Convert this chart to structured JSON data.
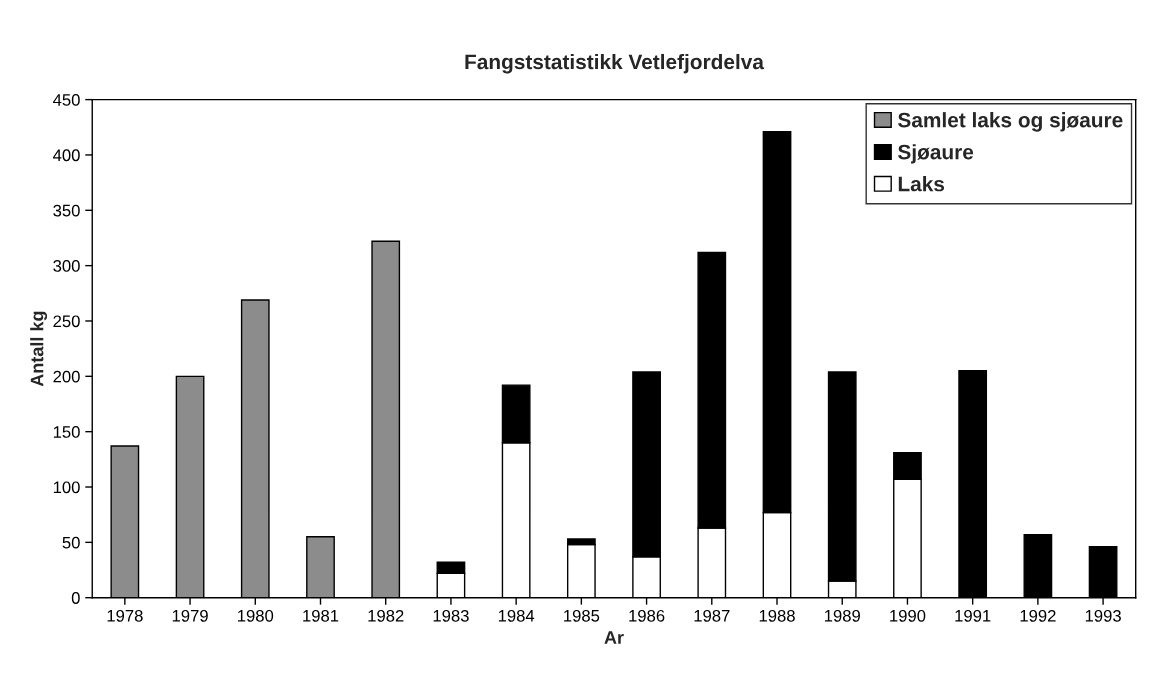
{
  "chart_data": {
    "type": "bar",
    "title": "Fangststatistikk Vetlefjordelva",
    "xlabel": "Ar",
    "ylabel": "Antall kg",
    "categories": [
      "1978",
      "1979",
      "1980",
      "1981",
      "1982",
      "1983",
      "1984",
      "1985",
      "1986",
      "1987",
      "1988",
      "1989",
      "1990",
      "1991",
      "1992",
      "1993"
    ],
    "stacked": true,
    "series": [
      {
        "name": "Laks",
        "color": "#ffffff",
        "values": [
          null,
          null,
          null,
          null,
          null,
          22,
          140,
          48,
          37,
          63,
          77,
          15,
          107,
          null,
          null,
          null
        ]
      },
      {
        "name": "Sjøaure",
        "color": "#000000",
        "values": [
          null,
          null,
          null,
          null,
          null,
          10,
          52,
          5,
          167,
          249,
          344,
          189,
          24,
          205,
          57,
          46
        ]
      },
      {
        "name": "Samlet laks og sjøaure",
        "color": "#8c8c8c",
        "values": [
          137,
          200,
          269,
          55,
          322,
          null,
          null,
          null,
          null,
          null,
          null,
          null,
          null,
          null,
          null,
          null
        ]
      }
    ],
    "ylim": [
      0,
      450
    ],
    "yticks": [
      0,
      50,
      100,
      150,
      200,
      250,
      300,
      350,
      400,
      450
    ],
    "grid": false,
    "legend": "top right"
  }
}
